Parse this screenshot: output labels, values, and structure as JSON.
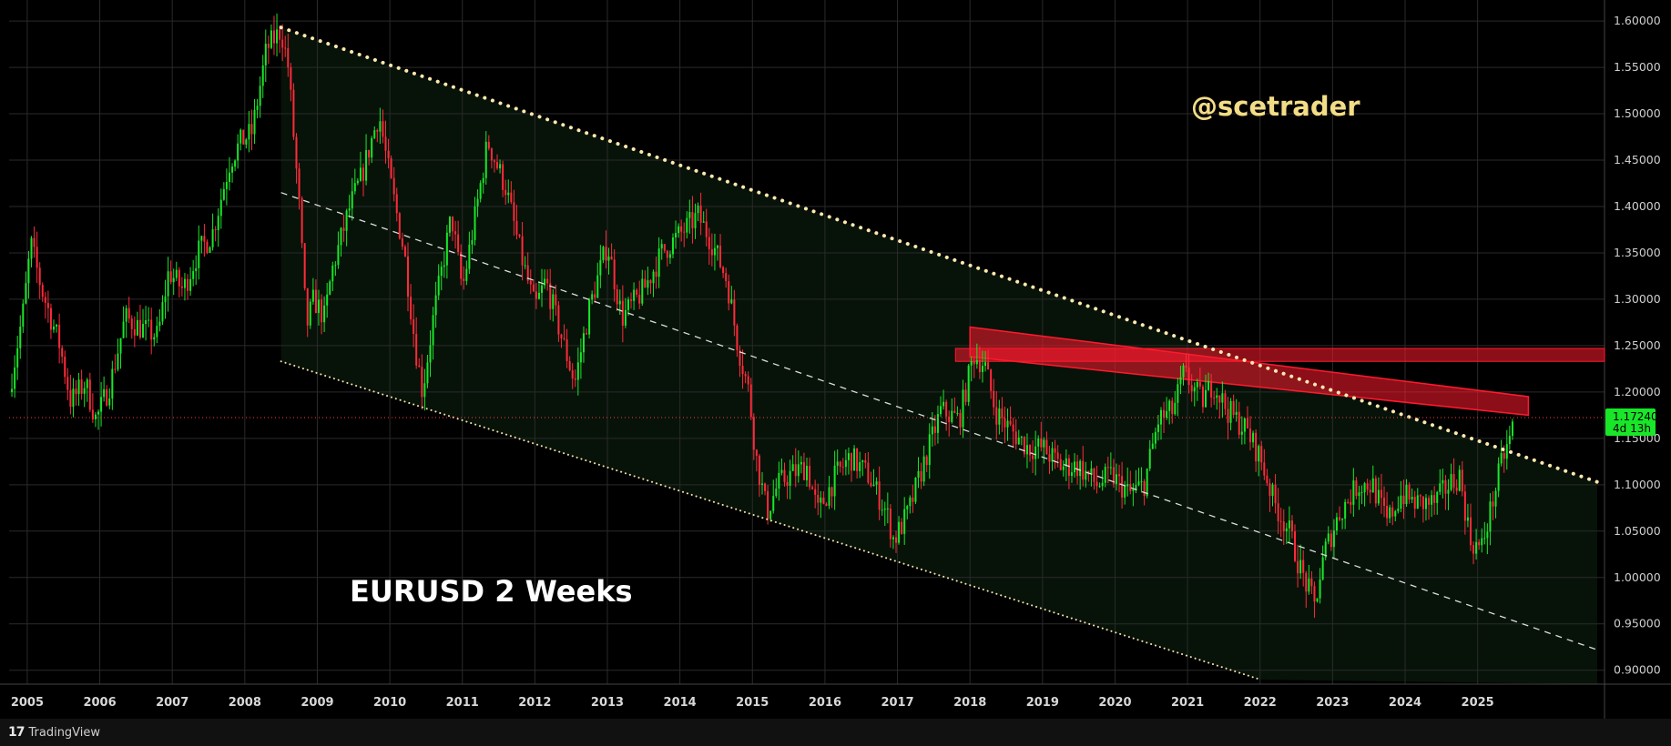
{
  "chart_data": {
    "type": "candlestick",
    "title": "EURUSD 2 Weeks",
    "watermark": "@scetrader",
    "symbol": "EURUSD",
    "timeframe": "2 Weeks",
    "x_range": [
      2004.75,
      2026.75
    ],
    "ylim": [
      0.885,
      1.605
    ],
    "x_ticks": [
      {
        "label": "2005",
        "value": 2005
      },
      {
        "label": "2006",
        "value": 2006
      },
      {
        "label": "2007",
        "value": 2007
      },
      {
        "label": "2008",
        "value": 2008
      },
      {
        "label": "2009",
        "value": 2009
      },
      {
        "label": "2010",
        "value": 2010
      },
      {
        "label": "2011",
        "value": 2011
      },
      {
        "label": "2012",
        "value": 2012
      },
      {
        "label": "2013",
        "value": 2013
      },
      {
        "label": "2014",
        "value": 2014
      },
      {
        "label": "2015",
        "value": 2015
      },
      {
        "label": "2016",
        "value": 2016
      },
      {
        "label": "2017",
        "value": 2017
      },
      {
        "label": "2018",
        "value": 2018
      },
      {
        "label": "2019",
        "value": 2019
      },
      {
        "label": "2020",
        "value": 2020
      },
      {
        "label": "2021",
        "value": 2021
      },
      {
        "label": "2022",
        "value": 2022
      },
      {
        "label": "2023",
        "value": 2023
      },
      {
        "label": "2024",
        "value": 2024
      },
      {
        "label": "2025",
        "value": 2025
      }
    ],
    "y_ticks": [
      "0.90000",
      "0.95000",
      "1.00000",
      "1.05000",
      "1.10000",
      "1.15000",
      "1.20000",
      "1.25000",
      "1.30000",
      "1.35000",
      "1.40000",
      "1.45000",
      "1.50000",
      "1.55000",
      "1.60000"
    ],
    "current_price": {
      "value": 1.1724,
      "label": "1.17240",
      "countdown": "4d 13h"
    },
    "price_path": [
      [
        2004.75,
        1.2
      ],
      [
        2004.95,
        1.29
      ],
      [
        2005.05,
        1.36
      ],
      [
        2005.2,
        1.31
      ],
      [
        2005.45,
        1.25
      ],
      [
        2005.6,
        1.19
      ],
      [
        2005.8,
        1.21
      ],
      [
        2005.95,
        1.17
      ],
      [
        2006.15,
        1.21
      ],
      [
        2006.35,
        1.28
      ],
      [
        2006.55,
        1.27
      ],
      [
        2006.8,
        1.26
      ],
      [
        2006.95,
        1.33
      ],
      [
        2007.15,
        1.31
      ],
      [
        2007.35,
        1.35
      ],
      [
        2007.55,
        1.37
      ],
      [
        2007.8,
        1.45
      ],
      [
        2007.95,
        1.47
      ],
      [
        2008.1,
        1.48
      ],
      [
        2008.3,
        1.57
      ],
      [
        2008.5,
        1.59
      ],
      [
        2008.6,
        1.55
      ],
      [
        2008.75,
        1.4
      ],
      [
        2008.85,
        1.27
      ],
      [
        2008.95,
        1.3
      ],
      [
        2009.1,
        1.28
      ],
      [
        2009.2,
        1.33
      ],
      [
        2009.45,
        1.4
      ],
      [
        2009.6,
        1.43
      ],
      [
        2009.85,
        1.5
      ],
      [
        2010.0,
        1.43
      ],
      [
        2010.2,
        1.35
      ],
      [
        2010.35,
        1.25
      ],
      [
        2010.45,
        1.2
      ],
      [
        2010.6,
        1.28
      ],
      [
        2010.85,
        1.39
      ],
      [
        2011.0,
        1.31
      ],
      [
        2011.2,
        1.4
      ],
      [
        2011.35,
        1.47
      ],
      [
        2011.6,
        1.42
      ],
      [
        2011.8,
        1.35
      ],
      [
        2012.0,
        1.29
      ],
      [
        2012.15,
        1.32
      ],
      [
        2012.4,
        1.25
      ],
      [
        2012.55,
        1.21
      ],
      [
        2012.75,
        1.29
      ],
      [
        2013.0,
        1.36
      ],
      [
        2013.2,
        1.28
      ],
      [
        2013.5,
        1.31
      ],
      [
        2013.75,
        1.35
      ],
      [
        2014.0,
        1.37
      ],
      [
        2014.25,
        1.39
      ],
      [
        2014.45,
        1.36
      ],
      [
        2014.65,
        1.32
      ],
      [
        2014.8,
        1.25
      ],
      [
        2014.95,
        1.2
      ],
      [
        2015.05,
        1.13
      ],
      [
        2015.2,
        1.07
      ],
      [
        2015.35,
        1.1
      ],
      [
        2015.5,
        1.11
      ],
      [
        2015.75,
        1.12
      ],
      [
        2015.9,
        1.07
      ],
      [
        2016.15,
        1.11
      ],
      [
        2016.35,
        1.13
      ],
      [
        2016.6,
        1.11
      ],
      [
        2016.85,
        1.07
      ],
      [
        2016.95,
        1.04
      ],
      [
        2017.15,
        1.07
      ],
      [
        2017.35,
        1.12
      ],
      [
        2017.6,
        1.18
      ],
      [
        2017.85,
        1.17
      ],
      [
        2018.05,
        1.24
      ],
      [
        2018.2,
        1.23
      ],
      [
        2018.35,
        1.18
      ],
      [
        2018.55,
        1.16
      ],
      [
        2018.8,
        1.14
      ],
      [
        2019.0,
        1.14
      ],
      [
        2019.25,
        1.12
      ],
      [
        2019.5,
        1.12
      ],
      [
        2019.75,
        1.1
      ],
      [
        2019.95,
        1.11
      ],
      [
        2020.2,
        1.09
      ],
      [
        2020.4,
        1.1
      ],
      [
        2020.6,
        1.17
      ],
      [
        2020.8,
        1.18
      ],
      [
        2020.95,
        1.22
      ],
      [
        2021.2,
        1.19
      ],
      [
        2021.35,
        1.21
      ],
      [
        2021.55,
        1.18
      ],
      [
        2021.8,
        1.16
      ],
      [
        2022.0,
        1.13
      ],
      [
        2022.2,
        1.08
      ],
      [
        2022.4,
        1.05
      ],
      [
        2022.55,
        1.01
      ],
      [
        2022.75,
        0.97
      ],
      [
        2022.9,
        1.03
      ],
      [
        2023.1,
        1.07
      ],
      [
        2023.35,
        1.1
      ],
      [
        2023.55,
        1.1
      ],
      [
        2023.75,
        1.06
      ],
      [
        2023.95,
        1.09
      ],
      [
        2024.15,
        1.08
      ],
      [
        2024.4,
        1.08
      ],
      [
        2024.6,
        1.1
      ],
      [
        2024.75,
        1.11
      ],
      [
        2024.9,
        1.04
      ],
      [
        2025.05,
        1.03
      ],
      [
        2025.2,
        1.08
      ],
      [
        2025.35,
        1.13
      ],
      [
        2025.45,
        1.15
      ],
      [
        2025.5,
        1.1724
      ]
    ],
    "trendlines": [
      {
        "style": "dotted-thick",
        "color": "#ffe8b0",
        "from": [
          2008.5,
          1.593
        ],
        "to": [
          2026.65,
          1.103
        ]
      },
      {
        "style": "dashed",
        "color": "#dddddd",
        "from": [
          2008.5,
          1.415
        ],
        "to": [
          2026.65,
          0.922
        ]
      },
      {
        "style": "dotted",
        "color": "#f2e0a8",
        "from": [
          2008.5,
          1.233
        ],
        "to": [
          2022.0,
          0.89
        ]
      }
    ],
    "zones": [
      {
        "type": "horizontal",
        "color": "#ff1a2e",
        "from_x": 2017.8,
        "to_x": 2026.75,
        "y_low": 1.233,
        "y_high": 1.247
      },
      {
        "type": "sloped",
        "color": "#ff1a2e",
        "x_start": 2018.0,
        "x_end": 2025.7,
        "start_low": 1.238,
        "start_high": 1.27,
        "end_low": 1.175,
        "end_high": 1.195
      }
    ],
    "colors": {
      "up": "#19e629",
      "down": "#ff2a3a",
      "price_tag": "#19e629",
      "grid": "#2a2a2a",
      "background": "#000000"
    }
  },
  "footer": {
    "logo": "17",
    "brand": "TradingView"
  }
}
